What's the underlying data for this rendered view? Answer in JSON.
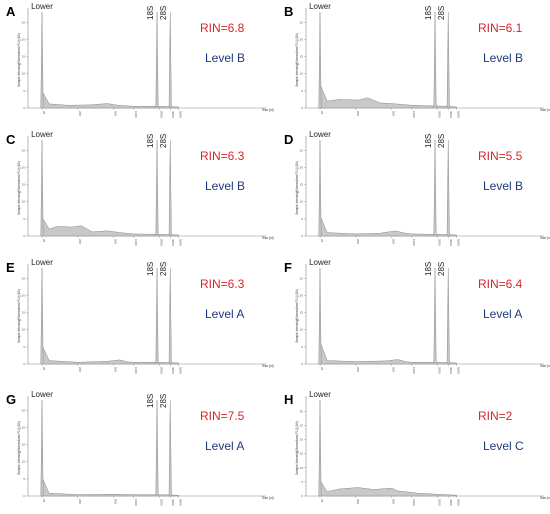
{
  "chart_data": [
    {
      "panel": "A",
      "type": "area",
      "rin": "RIN=6.8",
      "level": "Level B",
      "ylabel": "Sample Intensity[Normalized FU] (10³)",
      "xlabel": "Size [nt]",
      "yticks": [
        "0",
        "5",
        "10",
        "15",
        "20",
        "25"
      ],
      "ylim": [
        0,
        28
      ],
      "xticks": [
        "25",
        "200",
        "500",
        "1000",
        "2000",
        "4000",
        "6000"
      ],
      "peaks": [
        {
          "label": "Lower",
          "x": 25,
          "y": 28
        },
        {
          "label": "18S",
          "x": 1900,
          "y": 28
        },
        {
          "label": "28S",
          "x": 3900,
          "y": 28
        }
      ],
      "profile": [
        [
          25,
          5
        ],
        [
          60,
          1.2
        ],
        [
          150,
          0.8
        ],
        [
          300,
          0.9
        ],
        [
          450,
          1.3
        ],
        [
          600,
          0.8
        ],
        [
          1000,
          0.5
        ],
        [
          1900,
          0.5
        ],
        [
          3900,
          0.4
        ],
        [
          6000,
          0.3
        ]
      ]
    },
    {
      "panel": "B",
      "type": "area",
      "rin": "RIN=6.1",
      "level": "Level B",
      "ylabel": "Sample Intensity[Normalized FU] (10³)",
      "xlabel": "Size [nt]",
      "yticks": [
        "0",
        "5",
        "10",
        "15",
        "20",
        "25"
      ],
      "ylim": [
        0,
        28
      ],
      "xticks": [
        "25",
        "200",
        "500",
        "1000",
        "2000",
        "4000",
        "6000"
      ],
      "peaks": [
        {
          "label": "Lower",
          "x": 25,
          "y": 28
        },
        {
          "label": "18S",
          "x": 1900,
          "y": 28
        },
        {
          "label": "28S",
          "x": 3900,
          "y": 28
        }
      ],
      "profile": [
        [
          25,
          7
        ],
        [
          60,
          2
        ],
        [
          120,
          2.5
        ],
        [
          220,
          2.3
        ],
        [
          300,
          3
        ],
        [
          400,
          1.5
        ],
        [
          600,
          1.2
        ],
        [
          1000,
          0.8
        ],
        [
          1900,
          0.6
        ],
        [
          3900,
          0.5
        ],
        [
          6000,
          0.3
        ]
      ]
    },
    {
      "panel": "C",
      "type": "area",
      "rin": "RIN=6.3",
      "level": "Level B",
      "ylabel": "Sample Intensity[Normalized FU] (10³)",
      "xlabel": "Size [nt]",
      "yticks": [
        "0",
        "5",
        "10",
        "15",
        "20",
        "25"
      ],
      "ylim": [
        0,
        28
      ],
      "xticks": [
        "25",
        "200",
        "500",
        "1000",
        "2000",
        "4000",
        "6000"
      ],
      "peaks": [
        {
          "label": "Lower",
          "x": 25,
          "y": 28
        },
        {
          "label": "18S",
          "x": 1900,
          "y": 28
        },
        {
          "label": "28S",
          "x": 3900,
          "y": 28
        }
      ],
      "profile": [
        [
          25,
          5.5
        ],
        [
          60,
          2
        ],
        [
          100,
          2.8
        ],
        [
          170,
          2.6
        ],
        [
          230,
          3
        ],
        [
          320,
          1.2
        ],
        [
          450,
          1.5
        ],
        [
          650,
          1
        ],
        [
          1000,
          0.6
        ],
        [
          1900,
          0.5
        ],
        [
          3900,
          0.4
        ],
        [
          6000,
          0.3
        ]
      ]
    },
    {
      "panel": "D",
      "type": "area",
      "rin": "RIN=5.5",
      "level": "Level B",
      "ylabel": "Sample Intensity[Normalized FU] (10³)",
      "xlabel": "Size [nt]",
      "yticks": [
        "0",
        "5",
        "10",
        "15",
        "20",
        "25"
      ],
      "ylim": [
        0,
        28
      ],
      "xticks": [
        "25",
        "200",
        "500",
        "1000",
        "2000",
        "4000",
        "6000"
      ],
      "peaks": [
        {
          "label": "Lower",
          "x": 25,
          "y": 28
        },
        {
          "label": "18S",
          "x": 1900,
          "y": 28
        },
        {
          "label": "28S",
          "x": 3900,
          "y": 28
        }
      ],
      "profile": [
        [
          25,
          6
        ],
        [
          60,
          1
        ],
        [
          200,
          0.6
        ],
        [
          400,
          0.8
        ],
        [
          600,
          1.5
        ],
        [
          800,
          0.9
        ],
        [
          1000,
          0.6
        ],
        [
          1900,
          0.5
        ],
        [
          3900,
          0.4
        ],
        [
          6000,
          0.3
        ]
      ]
    },
    {
      "panel": "E",
      "type": "area",
      "rin": "RIN=6.3",
      "level": "Level A",
      "ylabel": "Sample Intensity[Normalized FU] (10³)",
      "xlabel": "Size [nt]",
      "yticks": [
        "0",
        "5",
        "10",
        "15",
        "20",
        "25"
      ],
      "ylim": [
        0,
        28
      ],
      "xticks": [
        "25",
        "200",
        "500",
        "1000",
        "2000",
        "4000",
        "6000"
      ],
      "peaks": [
        {
          "label": "Lower",
          "x": 25,
          "y": 28
        },
        {
          "label": "18S",
          "x": 1900,
          "y": 28
        },
        {
          "label": "28S",
          "x": 3900,
          "y": 28
        }
      ],
      "profile": [
        [
          25,
          5.5
        ],
        [
          60,
          1
        ],
        [
          200,
          0.5
        ],
        [
          450,
          0.8
        ],
        [
          650,
          1.2
        ],
        [
          850,
          0.6
        ],
        [
          1000,
          0.5
        ],
        [
          1900,
          0.5
        ],
        [
          3900,
          0.4
        ],
        [
          6000,
          0.3
        ]
      ]
    },
    {
      "panel": "F",
      "type": "area",
      "rin": "RIN=6.4",
      "level": "Level A",
      "ylabel": "Sample Intensity[Normalized FU] (10³)",
      "xlabel": "Size [nt]",
      "yticks": [
        "0",
        "5",
        "10",
        "15",
        "20",
        "25"
      ],
      "ylim": [
        0,
        28
      ],
      "xticks": [
        "25",
        "200",
        "500",
        "1000",
        "2000",
        "4000",
        "6000"
      ],
      "peaks": [
        {
          "label": "Lower",
          "x": 25,
          "y": 28
        },
        {
          "label": "18S",
          "x": 1900,
          "y": 28
        },
        {
          "label": "28S",
          "x": 3900,
          "y": 28
        }
      ],
      "profile": [
        [
          25,
          6.5
        ],
        [
          60,
          1
        ],
        [
          200,
          0.7
        ],
        [
          450,
          0.9
        ],
        [
          650,
          1.3
        ],
        [
          850,
          0.7
        ],
        [
          1000,
          0.5
        ],
        [
          1900,
          0.5
        ],
        [
          3900,
          0.4
        ],
        [
          6000,
          0.3
        ]
      ]
    },
    {
      "panel": "G",
      "type": "area",
      "rin": "RIN=7.5",
      "level": "Level A",
      "ylabel": "Sample Intensity[Normalized FU] (10³)",
      "xlabel": "Size [nt]",
      "yticks": [
        "0",
        "5",
        "10",
        "15",
        "20",
        "25"
      ],
      "ylim": [
        0,
        28
      ],
      "xticks": [
        "25",
        "200",
        "500",
        "1000",
        "2000",
        "4000",
        "6000"
      ],
      "peaks": [
        {
          "label": "Lower",
          "x": 25,
          "y": 28
        },
        {
          "label": "18S",
          "x": 1900,
          "y": 28
        },
        {
          "label": "28S",
          "x": 3900,
          "y": 28
        }
      ],
      "profile": [
        [
          25,
          5.5
        ],
        [
          60,
          0.8
        ],
        [
          200,
          0.4
        ],
        [
          500,
          0.5
        ],
        [
          1000,
          0.4
        ],
        [
          1900,
          0.4
        ],
        [
          3900,
          0.3
        ],
        [
          6000,
          0.2
        ]
      ]
    },
    {
      "panel": "H",
      "type": "area",
      "rin": "RIN=2",
      "level": "Level C",
      "ylabel": "Sample Intensity[Normalized FU] (10³)",
      "xlabel": "Size [nt]",
      "yticks": [
        "0",
        "5",
        "10",
        "15",
        "20",
        "25",
        "30"
      ],
      "ylim": [
        0,
        34
      ],
      "xticks": [
        "25",
        "200",
        "500",
        "1000",
        "2000",
        "4000",
        "6000"
      ],
      "peaks": [
        {
          "label": "Lower",
          "x": 25,
          "y": 34
        }
      ],
      "profile": [
        [
          25,
          5.5
        ],
        [
          60,
          1.5
        ],
        [
          120,
          2.5
        ],
        [
          220,
          3
        ],
        [
          350,
          2.3
        ],
        [
          500,
          2.8
        ],
        [
          650,
          1.8
        ],
        [
          850,
          1.5
        ],
        [
          1200,
          1
        ],
        [
          2000,
          0.6
        ],
        [
          4000,
          0.4
        ],
        [
          6000,
          0.3
        ]
      ]
    }
  ],
  "colors": {
    "rin": "#d9262b",
    "level": "#1f3a78",
    "fill": "#c8c8c8",
    "line": "#8a8a8a"
  }
}
